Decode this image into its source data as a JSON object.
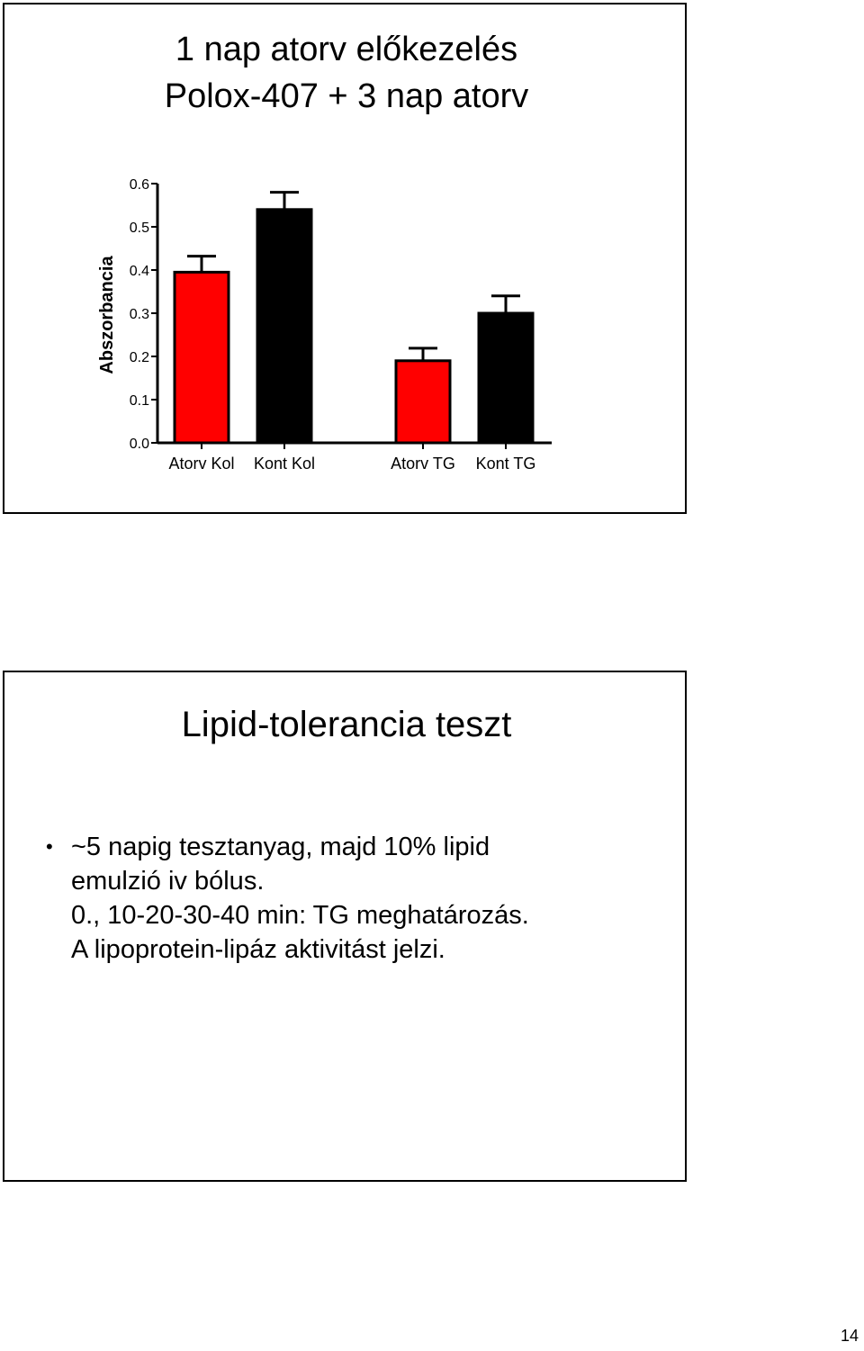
{
  "slide1": {
    "title_line1": "1 nap atorv előkezelés",
    "title_line2": "Polox-407 + 3 nap atorv"
  },
  "chart_data": {
    "type": "bar",
    "title": "",
    "ylabel": "Abszorbancia",
    "xlabel": "",
    "ylim": [
      0,
      0.6
    ],
    "yticks": [
      "0.0",
      "0.1",
      "0.2",
      "0.3",
      "0.4",
      "0.5",
      "0.6"
    ],
    "categories": [
      "Atorv Kol",
      "Kont Kol",
      "Atorv TG",
      "Kont TG"
    ],
    "values": [
      0.395,
      0.54,
      0.19,
      0.3
    ],
    "errors": [
      0.037,
      0.04,
      0.029,
      0.04
    ],
    "colors": [
      "#ff0000",
      "#000000",
      "#ff0000",
      "#000000"
    ],
    "grid": false
  },
  "slide2": {
    "title": "Lipid-tolerancia teszt",
    "bullet_symbol": "•",
    "bullet_lines": [
      "~5 napig tesztanyag, majd 10% lipid",
      "emulzió iv bólus.",
      "0., 10-20-30-40 min: TG meghatározás.",
      "A lipoprotein-lipáz aktivitást jelzi."
    ]
  },
  "page_number": "14"
}
